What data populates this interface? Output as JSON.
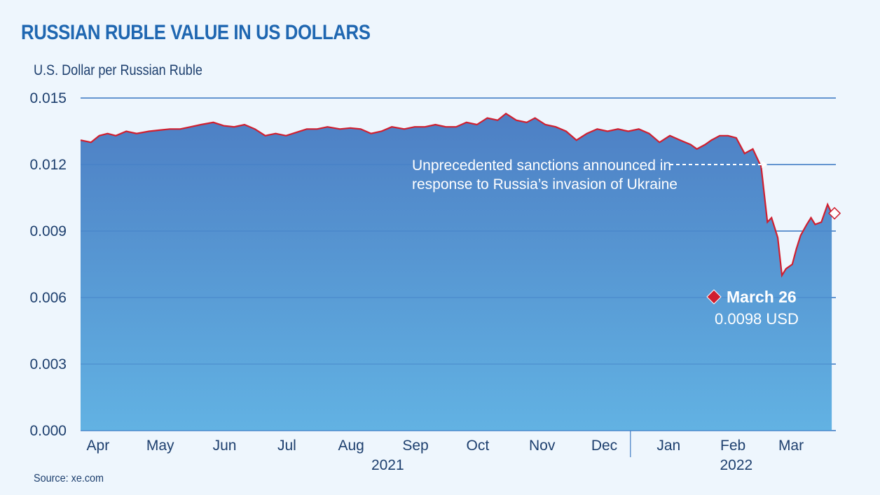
{
  "title": "RUSSIAN RUBLE VALUE IN US DOLLARS",
  "source": "Source: xe.com",
  "colors": {
    "title": "#1f67b1",
    "line": "#d01f2f",
    "area_top": "#4d7fc4",
    "area_bottom": "#62b2e3",
    "gridline": "#3f7bc4",
    "background": "#eef6fd"
  },
  "chart_data": {
    "type": "area",
    "title": "RUSSIAN RUBLE VALUE IN US DOLLARS",
    "ylabel": "U.S. Dollar per Russian Ruble",
    "xlabel": "",
    "ylim": [
      0,
      0.015
    ],
    "yticks": [
      "0.000",
      "0.003",
      "0.006",
      "0.009",
      "0.012",
      "0.015"
    ],
    "grid": "horizontal",
    "xlim": [
      "2021-03-29",
      "2022-03-28"
    ],
    "month_labels": [
      {
        "label": "Apr",
        "date": "2021-04-01"
      },
      {
        "label": "May",
        "date": "2021-05-01"
      },
      {
        "label": "Jun",
        "date": "2021-06-01"
      },
      {
        "label": "Jul",
        "date": "2021-07-01"
      },
      {
        "label": "Aug",
        "date": "2021-08-01"
      },
      {
        "label": "Sep",
        "date": "2021-09-01"
      },
      {
        "label": "Oct",
        "date": "2021-10-01"
      },
      {
        "label": "Nov",
        "date": "2021-11-01"
      },
      {
        "label": "Dec",
        "date": "2021-12-01"
      },
      {
        "label": "Jan",
        "date": "2022-01-01"
      },
      {
        "label": "Feb",
        "date": "2022-02-01"
      },
      {
        "label": "Mar",
        "date": "2022-03-01"
      }
    ],
    "year_labels": [
      {
        "label": "2021",
        "date": "2021-08-24"
      },
      {
        "label": "2022",
        "date": "2022-02-08"
      }
    ],
    "year_divider": "2021-12-19",
    "x": [
      "2021-03-29",
      "2021-04-03",
      "2021-04-07",
      "2021-04-11",
      "2021-04-15",
      "2021-04-20",
      "2021-04-25",
      "2021-05-01",
      "2021-05-06",
      "2021-05-11",
      "2021-05-16",
      "2021-05-21",
      "2021-05-26",
      "2021-06-01",
      "2021-06-06",
      "2021-06-11",
      "2021-06-16",
      "2021-06-21",
      "2021-06-26",
      "2021-07-01",
      "2021-07-06",
      "2021-07-11",
      "2021-07-16",
      "2021-07-21",
      "2021-07-26",
      "2021-08-01",
      "2021-08-06",
      "2021-08-11",
      "2021-08-16",
      "2021-08-21",
      "2021-08-26",
      "2021-09-01",
      "2021-09-06",
      "2021-09-11",
      "2021-09-16",
      "2021-09-21",
      "2021-09-26",
      "2021-10-01",
      "2021-10-06",
      "2021-10-11",
      "2021-10-16",
      "2021-10-20",
      "2021-10-25",
      "2021-10-30",
      "2021-11-03",
      "2021-11-08",
      "2021-11-13",
      "2021-11-18",
      "2021-11-23",
      "2021-11-28",
      "2021-12-03",
      "2021-12-08",
      "2021-12-13",
      "2021-12-18",
      "2021-12-23",
      "2021-12-28",
      "2022-01-02",
      "2022-01-07",
      "2022-01-12",
      "2022-01-17",
      "2022-01-20",
      "2022-01-24",
      "2022-01-27",
      "2022-01-31",
      "2022-02-04",
      "2022-02-08",
      "2022-02-12",
      "2022-02-16",
      "2022-02-20",
      "2022-02-23",
      "2022-02-25",
      "2022-02-28",
      "2022-03-02",
      "2022-03-04",
      "2022-03-07",
      "2022-03-09",
      "2022-03-11",
      "2022-03-14",
      "2022-03-16",
      "2022-03-18",
      "2022-03-21",
      "2022-03-24",
      "2022-03-26"
    ],
    "series": [
      {
        "values": [
          0.0131,
          0.013,
          0.0133,
          0.0134,
          0.0133,
          0.0135,
          0.0134,
          0.0135,
          0.01355,
          0.0136,
          0.0136,
          0.0137,
          0.0138,
          0.0139,
          0.01375,
          0.0137,
          0.0138,
          0.0136,
          0.0133,
          0.0134,
          0.0133,
          0.01345,
          0.0136,
          0.0136,
          0.0137,
          0.0136,
          0.01365,
          0.0136,
          0.0134,
          0.0135,
          0.0137,
          0.0136,
          0.0137,
          0.0137,
          0.0138,
          0.0137,
          0.0137,
          0.0139,
          0.0138,
          0.0141,
          0.014,
          0.0143,
          0.014,
          0.0139,
          0.0141,
          0.0138,
          0.0137,
          0.0135,
          0.0131,
          0.0134,
          0.0136,
          0.0135,
          0.0136,
          0.0135,
          0.0136,
          0.0134,
          0.013,
          0.0133,
          0.0131,
          0.0129,
          0.0127,
          0.0129,
          0.0131,
          0.0133,
          0.0133,
          0.0132,
          0.0125,
          0.0127,
          0.0119,
          0.0094,
          0.0096,
          0.0087,
          0.007,
          0.0073,
          0.0075,
          0.0082,
          0.0088,
          0.0093,
          0.0096,
          0.0093,
          0.0094,
          0.0102,
          0.0098
        ]
      }
    ],
    "annotations": [
      {
        "text_lines": [
          "Unprecedented sanctions announced in",
          "response to Russia’s invasion of Ukraine"
        ],
        "date": "2022-02-24",
        "value": 0.0119
      }
    ],
    "callout": {
      "date_label": "March 26",
      "value_label": "0.0098 USD",
      "date": "2022-03-26",
      "value": 0.0098
    }
  }
}
